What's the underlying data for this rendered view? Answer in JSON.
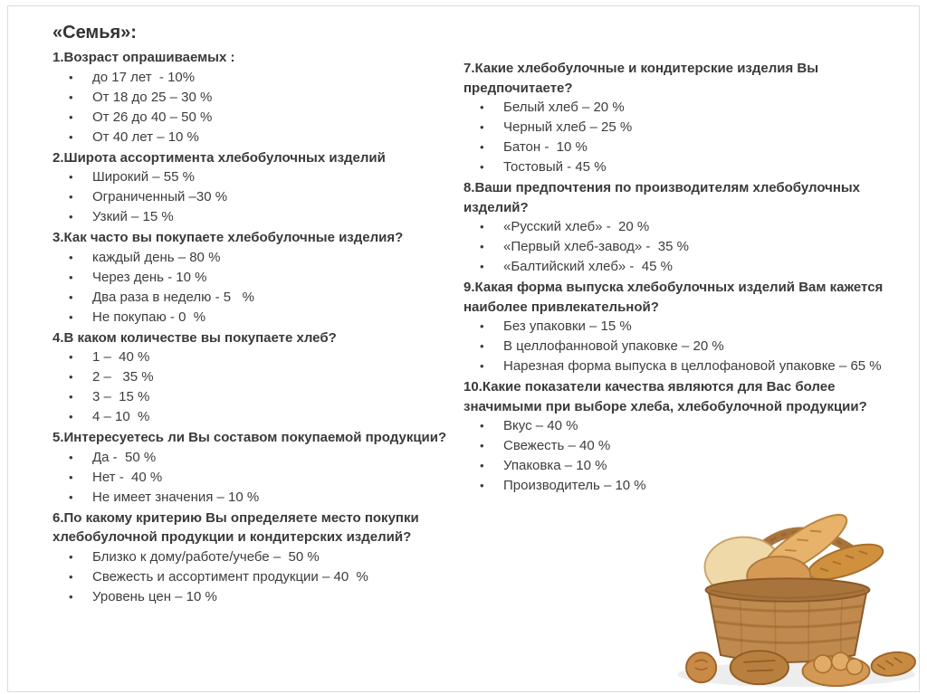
{
  "page": {
    "title": "«Семья»:",
    "bullet": "•",
    "colors": {
      "text": "#3d3d3d",
      "frame": "#dcdcdc"
    }
  },
  "columns": [
    {
      "questions": [
        {
          "heading": "1.Возраст опрашиваемых :",
          "items": [
            "до 17 лет  - 10%",
            "От 18 до 25 – 30 %",
            "От 26 до 40 – 50 %",
            "От 40 лет – 10 %"
          ]
        },
        {
          "heading": "2.Широта ассортимента хлебобулочных изделий",
          "items": [
            "Широкий – 55 %",
            "Ограниченный –30 %",
            "Узкий – 15 %"
          ]
        },
        {
          "heading": "3.Как часто вы покупаете хлебобулочные изделия?",
          "items": [
            "каждый день – 80 %",
            "Через день - 10 %",
            "Два раза в неделю - 5   %",
            "Не покупаю - 0  %"
          ]
        },
        {
          "heading": "4.В каком количестве вы покупаете хлеб?",
          "items": [
            "1 –  40 %",
            "2 –   35 %",
            "3 –  15 %",
            "4 – 10  %"
          ]
        },
        {
          "heading": "5.Интересуетесь ли Вы составом покупаемой продукции?",
          "items": [
            "Да -  50 %",
            "Нет -  40 %",
            "Не имеет значения – 10 %"
          ]
        },
        {
          "heading": "6.По какому критерию Вы определяете место покупки хлебобулочной продукции и кондитерских изделий?",
          "items": [
            "Близко к дому/работе/учебе –  50 %",
            "Свежесть и ассортимент продукции – 40  %",
            "Уровень цен – 10 %"
          ]
        }
      ]
    },
    {
      "questions": [
        {
          "heading": "7.Какие хлебобулочные и кондитерские изделия Вы предпочитаете?",
          "items": [
            "Белый хлеб – 20 %",
            "Черный хлеб – 25 %",
            "Батон -  10 %",
            "Тостовый - 45 %"
          ]
        },
        {
          "heading": "8.Ваши предпочтения по производителям хлебобулочных изделий?",
          "items": [
            "«Русский хлеб» -  20 %",
            "«Первый хлеб-завод» -  35 %",
            "«Балтийский хлеб» -  45 %"
          ]
        },
        {
          "heading": "9.Какая форма выпуска хлебобулочных изделий Вам кажется наиболее привлекательной?",
          "items": [
            "Без упаковки – 15 %",
            "В целлофанновой упаковке – 20 %",
            "Нарезная форма выпуска в целлофановой упаковке – 65 %"
          ]
        },
        {
          "heading": "10.Какие показатели качества являются для Вас более значимыми при выборе хлеба, хлебобулочной продукции?",
          "items": [
            "Вкус – 40 %",
            "Свежесть – 40 %",
            "Упаковка – 10 %",
            "Производитель – 10 %"
          ]
        }
      ]
    }
  ],
  "illustration": {
    "label": "bread-basket",
    "colors": {
      "basket": "#c08a4e",
      "basket_dark": "#9a6830",
      "bread_light": "#e7b269",
      "bread_mid": "#d0913f",
      "bread_dark": "#b97f3e"
    }
  }
}
